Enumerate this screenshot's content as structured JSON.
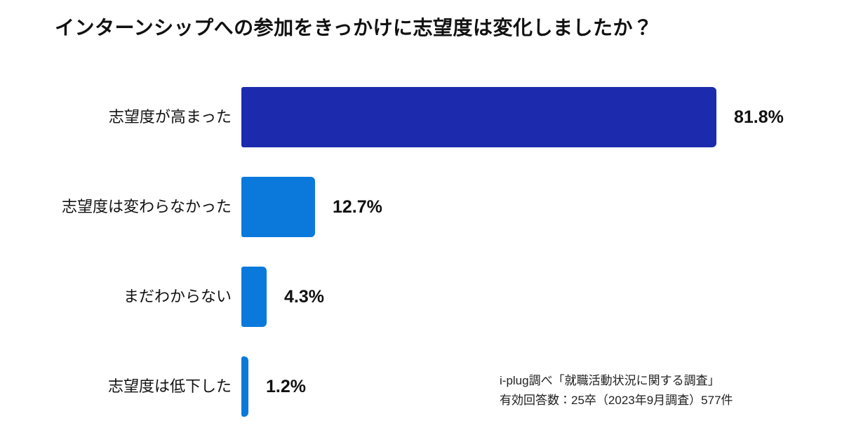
{
  "title": "インターンシップへの参加をきっかけに志望度は変化しましたか？",
  "source": {
    "line1": "i-plug調べ「就職活動状況に関する調査」",
    "line2": "有効回答数：25卒（2023年9月調査）577件"
  },
  "colors": {
    "bar_primary": "#1C2BAD",
    "bar_secondary": "#0B79DB",
    "text": "#111111",
    "background": "#FFFFFF"
  },
  "chart_data": {
    "type": "bar",
    "orientation": "horizontal",
    "title": "インターンシップへの参加をきっかけに志望度は変化しましたか？",
    "categories": [
      "志望度が高まった",
      "志望度は変わらなかった",
      "まだわからない",
      "志望度は低下した"
    ],
    "values": [
      81.8,
      12.7,
      4.3,
      1.2
    ],
    "value_labels": [
      "81.8%",
      "12.7%",
      "4.3%",
      "1.2%"
    ],
    "bar_colors": [
      "#1C2BAD",
      "#0B79DB",
      "#0B79DB",
      "#0B79DB"
    ],
    "xlabel": "",
    "ylabel": "",
    "xlim": [
      0,
      100
    ],
    "grid": false,
    "legend": false,
    "annotation": "i-plug調べ「就職活動状況に関する調査」 有効回答数：25卒（2023年9月調査）577件"
  }
}
